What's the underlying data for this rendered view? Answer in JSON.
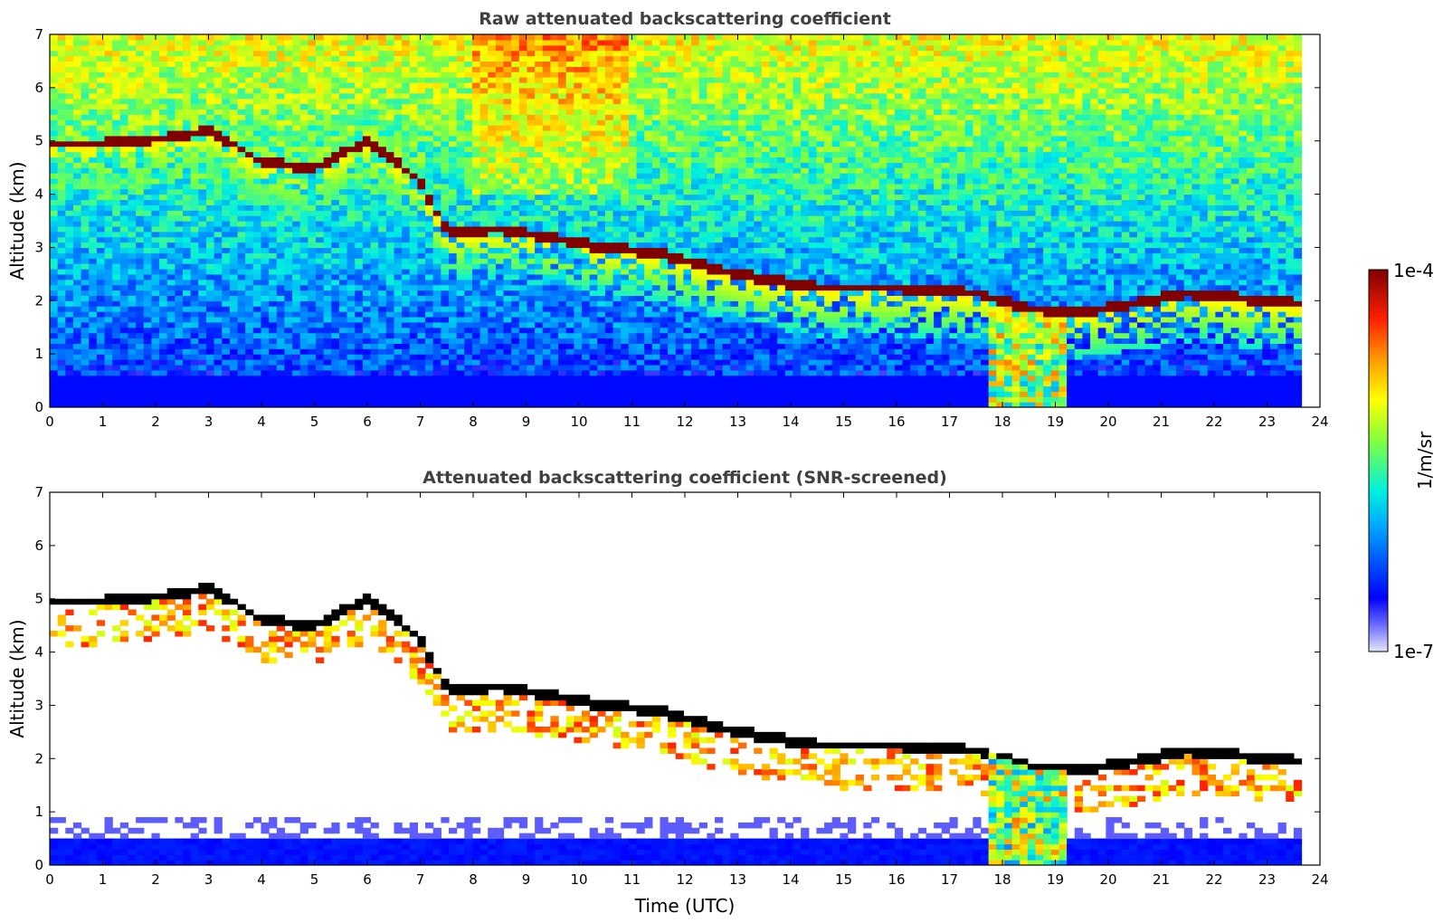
{
  "chart_data": [
    {
      "type": "heatmap",
      "title": "Raw attenuated backscattering coefficient",
      "xlabel": "",
      "ylabel": "Altitude (km)",
      "xlim": [
        0,
        24
      ],
      "ylim": [
        0,
        7
      ],
      "xticks": [
        "0",
        "1",
        "2",
        "3",
        "4",
        "5",
        "6",
        "7",
        "8",
        "9",
        "10",
        "11",
        "12",
        "13",
        "14",
        "15",
        "16",
        "17",
        "18",
        "19",
        "20",
        "21",
        "22",
        "23",
        "24"
      ],
      "yticks": [
        "0",
        "1",
        "2",
        "3",
        "4",
        "5",
        "6",
        "7"
      ],
      "data_end_hour": 23.65,
      "cloud_layer_altitude_km": [
        {
          "t": 1.0,
          "alt": 4.95
        },
        {
          "t": 2.6,
          "alt": 5.1
        },
        {
          "t": 3.0,
          "alt": 5.25
        },
        {
          "t": 4.0,
          "alt": 4.6
        },
        {
          "t": 5.0,
          "alt": 4.5
        },
        {
          "t": 6.0,
          "alt": 5.0
        },
        {
          "t": 7.0,
          "alt": 4.25
        },
        {
          "t": 7.5,
          "alt": 3.3
        },
        {
          "t": 8.5,
          "alt": 3.35
        },
        {
          "t": 10.5,
          "alt": 3.0
        },
        {
          "t": 11.5,
          "alt": 2.9
        },
        {
          "t": 13.0,
          "alt": 2.5
        },
        {
          "t": 14.5,
          "alt": 2.25
        },
        {
          "t": 16.0,
          "alt": 2.25
        },
        {
          "t": 17.5,
          "alt": 2.15
        },
        {
          "t": 18.5,
          "alt": 1.85
        },
        {
          "t": 19.5,
          "alt": 1.8
        },
        {
          "t": 20.5,
          "alt": 1.95
        },
        {
          "t": 21.5,
          "alt": 2.15
        },
        {
          "t": 22.5,
          "alt": 2.05
        },
        {
          "t": 23.6,
          "alt": 1.95
        }
      ]
    },
    {
      "type": "heatmap",
      "title": "Attenuated backscattering coefficient (SNR-screened)",
      "xlabel": "Time (UTC)",
      "ylabel": "Altitude (km)",
      "xlim": [
        0,
        24
      ],
      "ylim": [
        0,
        7
      ],
      "xticks": [
        "0",
        "1",
        "2",
        "3",
        "4",
        "5",
        "6",
        "7",
        "8",
        "9",
        "10",
        "11",
        "12",
        "13",
        "14",
        "15",
        "16",
        "17",
        "18",
        "19",
        "20",
        "21",
        "22",
        "23",
        "24"
      ],
      "yticks": [
        "0",
        "1",
        "2",
        "3",
        "4",
        "5",
        "6",
        "7"
      ],
      "data_end_hour": 23.65,
      "boundary_layer_top_km": 0.5
    }
  ],
  "colorbar": {
    "label": "1/m/sr",
    "max_label": "1e-4",
    "min_label": "1e-7",
    "colors": [
      "#e6e6fa",
      "#0000ff",
      "#00bfff",
      "#00ffd0",
      "#7cfc00",
      "#ffff00",
      "#ffa500",
      "#ff3000",
      "#8b0000"
    ]
  },
  "colors": {
    "low": "#0018ff",
    "mid": "#00c8c8",
    "high": "#ff8c00",
    "cloud": "#8b0000",
    "saturated": "#000000"
  }
}
